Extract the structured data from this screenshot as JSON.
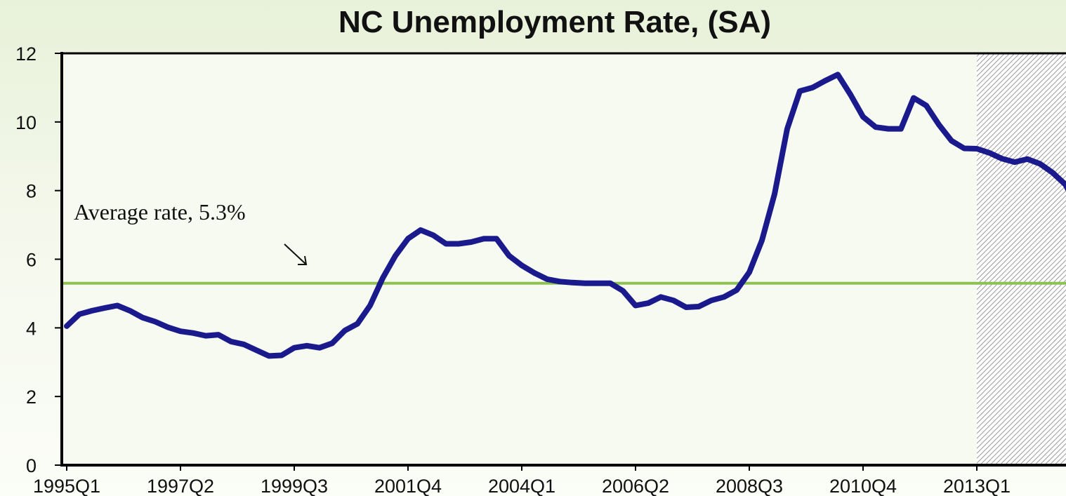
{
  "chart_data": {
    "type": "line",
    "title": "NC Unemployment Rate, (SA)",
    "xlabel": "",
    "ylabel": "",
    "ylim": [
      0,
      12
    ],
    "yticks": [
      0,
      2,
      4,
      6,
      8,
      10,
      12
    ],
    "x_tick_labels": [
      "1995Q1",
      "1997Q2",
      "1999Q3",
      "2001Q4",
      "2004Q1",
      "2006Q2",
      "2008Q3",
      "2010Q4",
      "2013Q1"
    ],
    "grid": false,
    "legend": "none",
    "series": [
      {
        "color": "#1a1a8c",
        "x": [
          "1995Q1",
          "1995Q2",
          "1995Q3",
          "1995Q4",
          "1996Q1",
          "1996Q2",
          "1996Q3",
          "1996Q4",
          "1997Q1",
          "1997Q2",
          "1997Q3",
          "1997Q4",
          "1998Q1",
          "1998Q2",
          "1998Q3",
          "1998Q4",
          "1999Q1",
          "1999Q2",
          "1999Q3",
          "1999Q4",
          "2000Q1",
          "2000Q2",
          "2000Q3",
          "2000Q4",
          "2001Q1",
          "2001Q2",
          "2001Q3",
          "2001Q4",
          "2002Q1",
          "2002Q2",
          "2002Q3",
          "2002Q4",
          "2003Q1",
          "2003Q2",
          "2003Q3",
          "2003Q4",
          "2004Q1",
          "2004Q2",
          "2004Q3",
          "2004Q4",
          "2005Q1",
          "2005Q2",
          "2005Q3",
          "2005Q4",
          "2006Q1",
          "2006Q2",
          "2006Q3",
          "2006Q4",
          "2007Q1",
          "2007Q2",
          "2007Q3",
          "2007Q4",
          "2008Q1",
          "2008Q2",
          "2008Q3",
          "2008Q4",
          "2009Q1",
          "2009Q2",
          "2009Q3",
          "2009Q4",
          "2010Q1",
          "2010Q2",
          "2010Q3",
          "2010Q4",
          "2011Q1",
          "2011Q2",
          "2011Q3",
          "2011Q4",
          "2012Q1",
          "2012Q2",
          "2012Q3",
          "2012Q4",
          "2013Q1",
          "2013Q2",
          "2013Q3",
          "2013Q4",
          "2014Q1",
          "2014Q2",
          "2014Q3",
          "2014Q4",
          "2015Q1"
        ],
        "values": [
          4.05,
          4.4,
          4.5,
          4.58,
          4.65,
          4.5,
          4.3,
          4.18,
          4.02,
          3.9,
          3.85,
          3.77,
          3.8,
          3.6,
          3.52,
          3.35,
          3.18,
          3.2,
          3.42,
          3.48,
          3.42,
          3.55,
          3.92,
          4.12,
          4.65,
          5.45,
          6.1,
          6.6,
          6.85,
          6.7,
          6.45,
          6.45,
          6.5,
          6.6,
          6.6,
          6.1,
          5.82,
          5.6,
          5.42,
          5.35,
          5.32,
          5.3,
          5.3,
          5.3,
          5.08,
          4.65,
          4.72,
          4.9,
          4.8,
          4.6,
          4.62,
          4.8,
          4.9,
          5.1,
          5.62,
          6.55,
          7.9,
          9.8,
          10.9,
          11.0,
          11.2,
          11.38,
          10.8,
          10.15,
          9.85,
          9.8,
          9.8,
          10.7,
          10.48,
          9.92,
          9.45,
          9.23,
          9.22,
          9.1,
          8.93,
          8.83,
          8.92,
          8.78,
          8.52,
          8.18,
          7.5
        ]
      }
    ],
    "reference_lines": [
      {
        "value": 5.3,
        "label": "Average rate, 5.3%",
        "color": "#8dc153"
      }
    ],
    "shaded_region": {
      "from": "2013Q1",
      "to": "2015Q1",
      "pattern": "diagonal hatch"
    }
  }
}
